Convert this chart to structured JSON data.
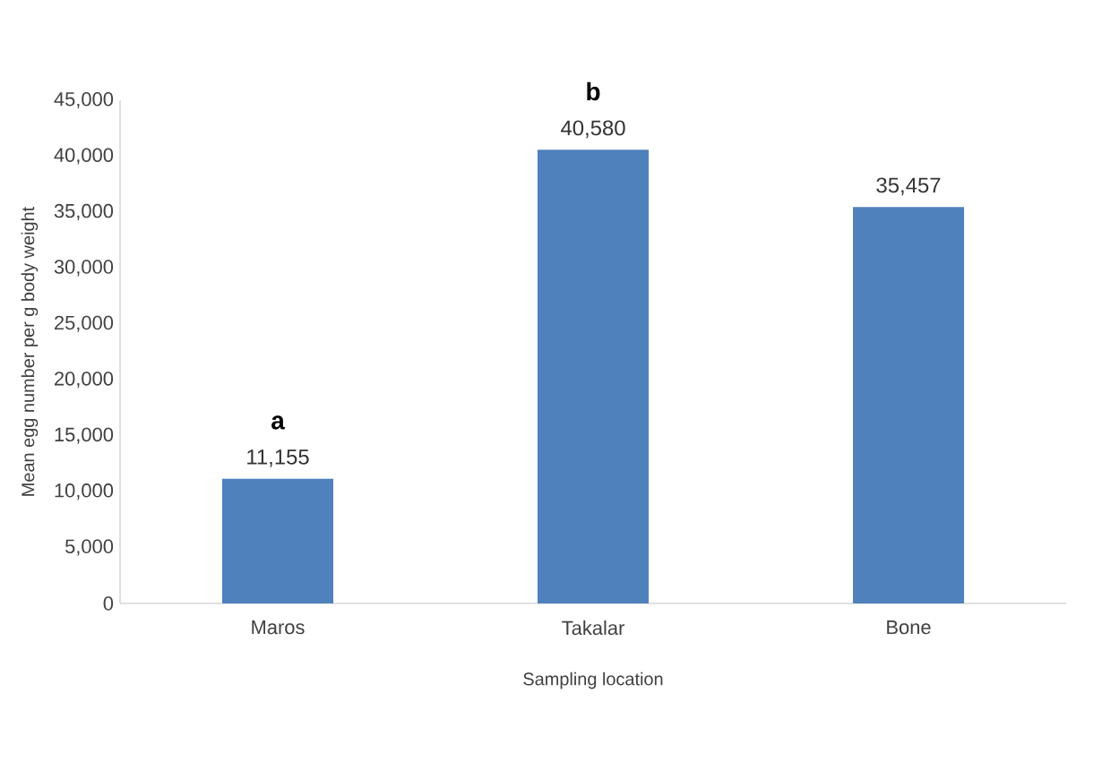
{
  "chart_data": {
    "type": "bar",
    "xlabel": "Sampling location",
    "ylabel": "Mean egg number per g body weight",
    "categories": [
      "Maros",
      "Takalar",
      "Bone"
    ],
    "values": [
      11155,
      40580,
      35457
    ],
    "value_labels": [
      "11,155",
      "40,580",
      "35,457"
    ],
    "color": "#4f81bd",
    "ylim": [
      0,
      45000
    ],
    "yticks": [
      {
        "value": 0,
        "label": "0"
      },
      {
        "value": 5000,
        "label": "5,000"
      },
      {
        "value": 10000,
        "label": "10,000"
      },
      {
        "value": 15000,
        "label": "15,000"
      },
      {
        "value": 20000,
        "label": "20,000"
      },
      {
        "value": 25000,
        "label": "25,000"
      },
      {
        "value": 30000,
        "label": "30,000"
      },
      {
        "value": 35000,
        "label": "35,000"
      },
      {
        "value": 40000,
        "label": "40,000"
      },
      {
        "value": 45000,
        "label": "45,000"
      }
    ],
    "annotations": [
      {
        "text": "a",
        "x": "Maros",
        "y": 11155
      },
      {
        "text": "b",
        "x": "Takalar",
        "y": 40580
      }
    ],
    "grid": false
  }
}
